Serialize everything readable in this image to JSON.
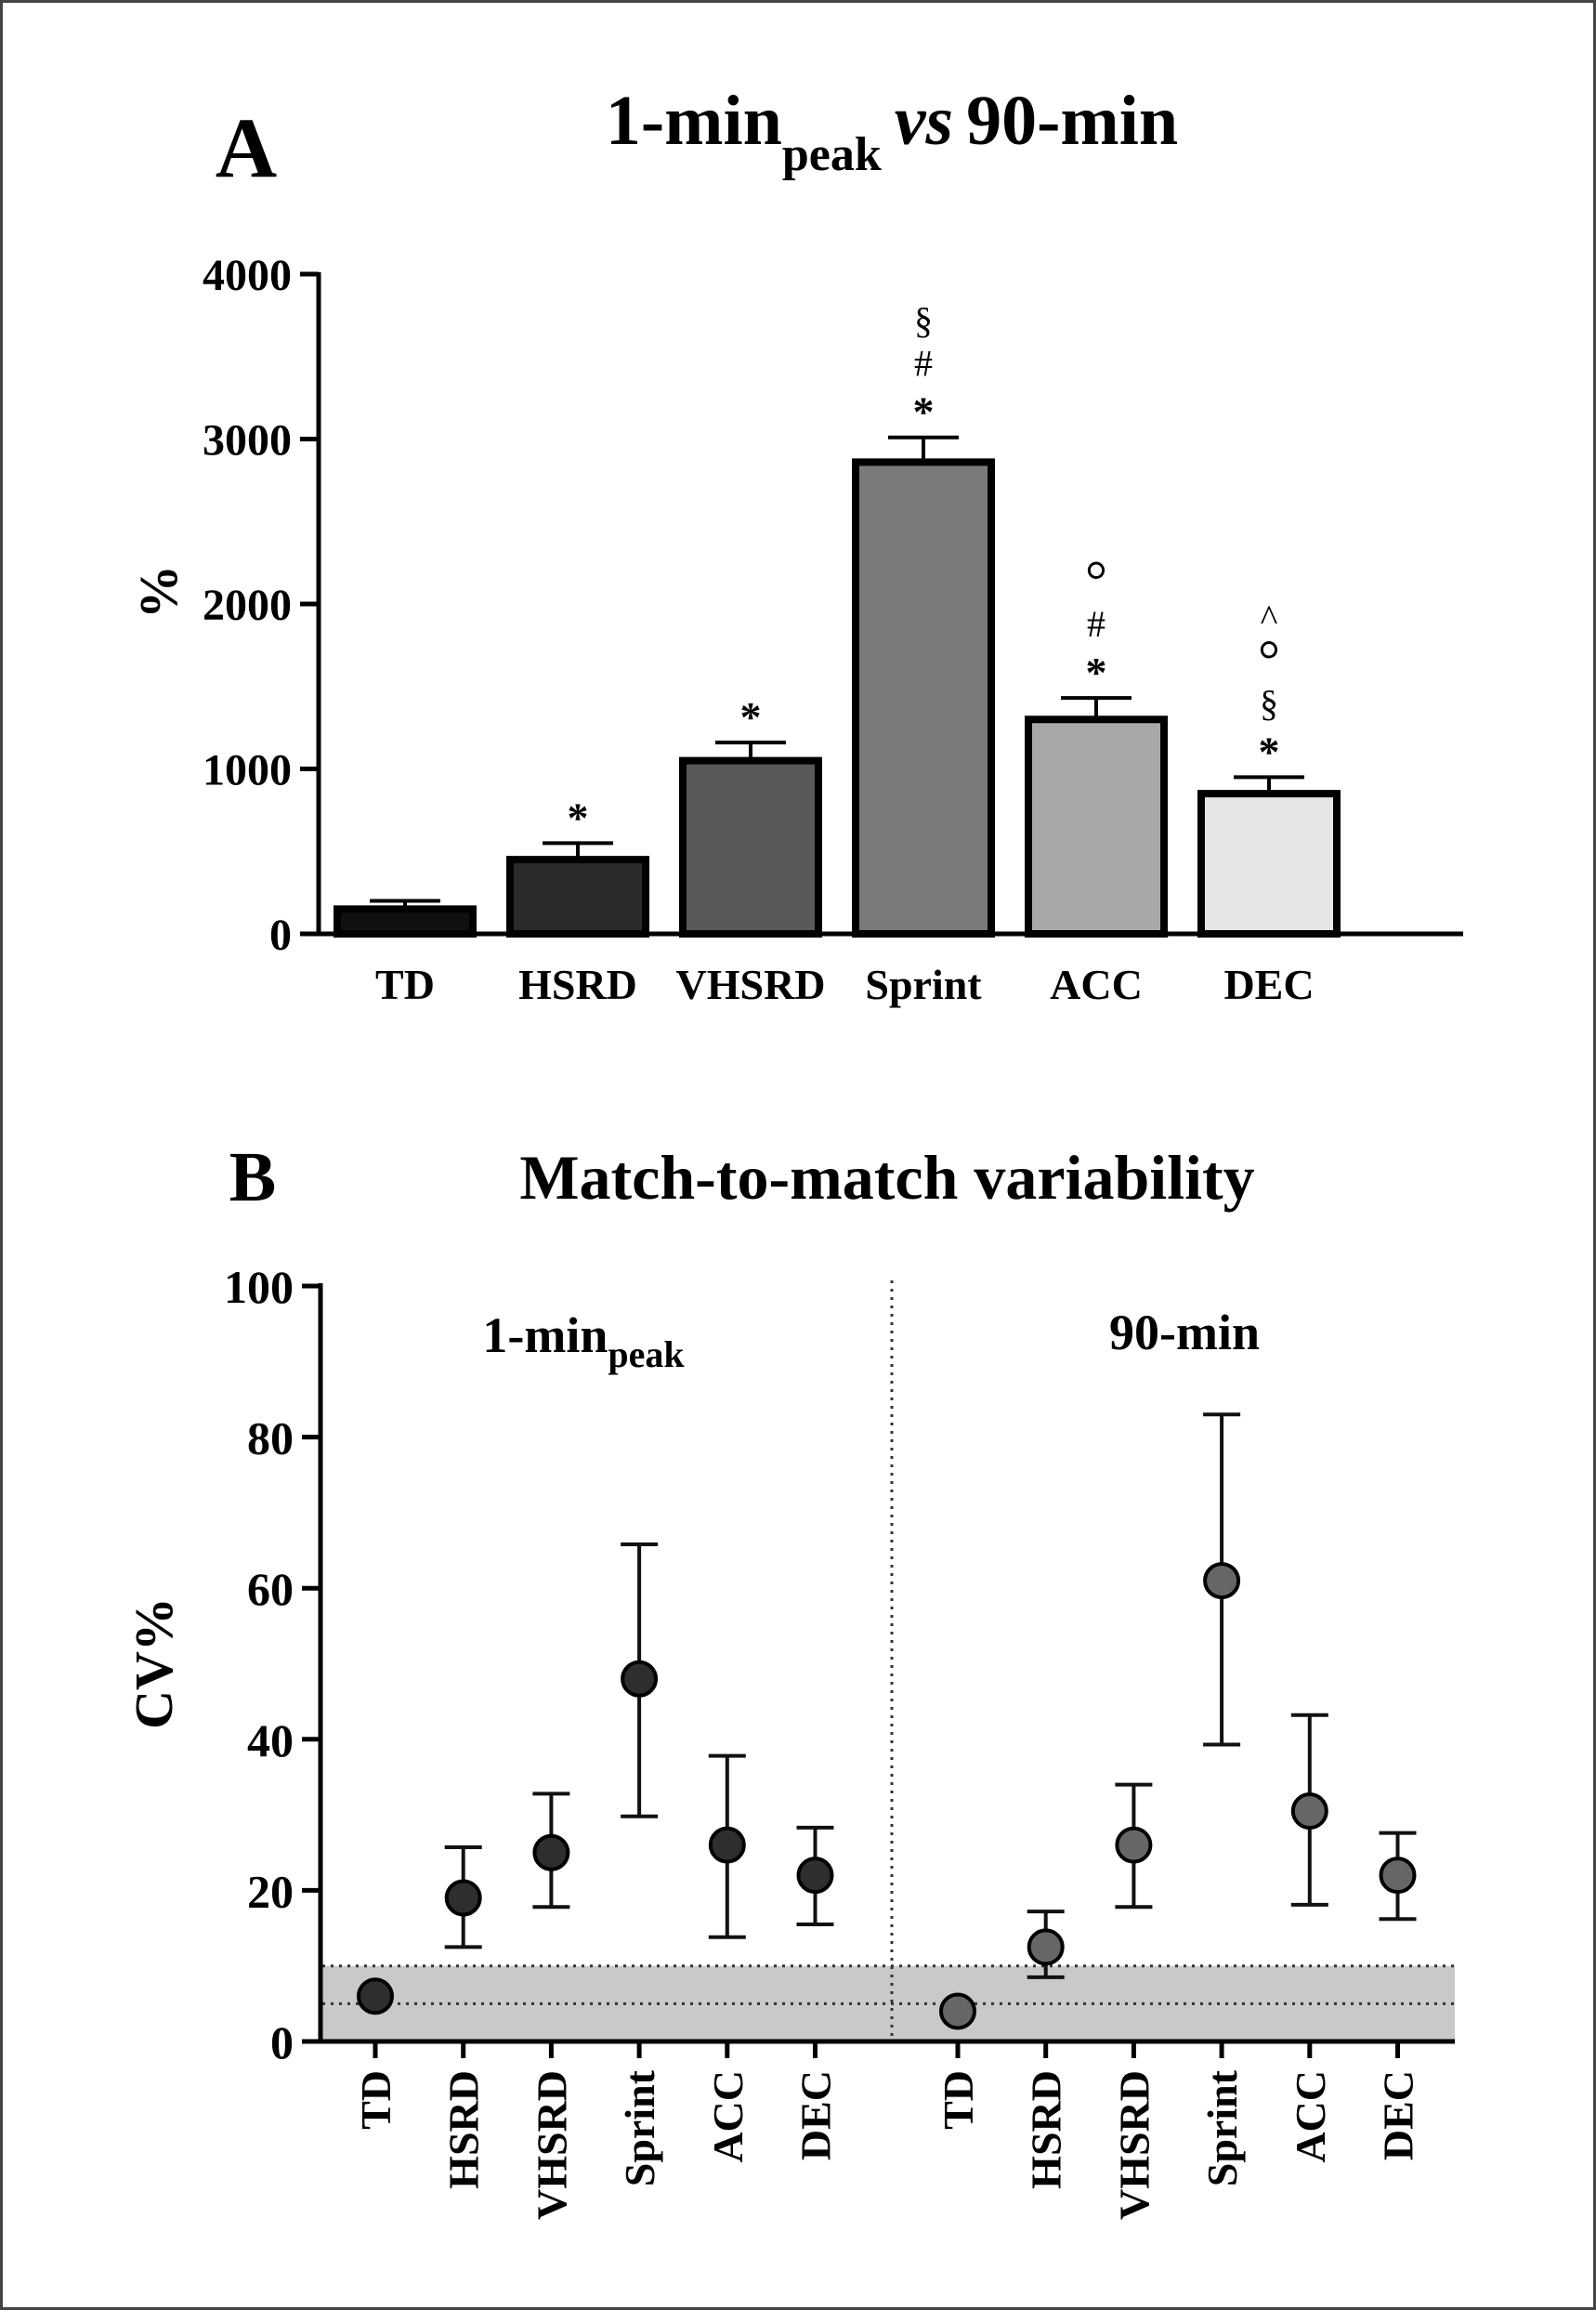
{
  "chart_data": [
    {
      "type": "bar",
      "panel_letter": "A",
      "title": {
        "part1": "1-min",
        "sub": "peak",
        "part2": "vs",
        "part3": "90-min"
      },
      "ylabel": "%",
      "ylim": [
        0,
        4000
      ],
      "yticks": [
        "0",
        "1000",
        "2000",
        "3000",
        "4000"
      ],
      "ytick_values": [
        0,
        1000,
        2000,
        3000,
        4000
      ],
      "categories": [
        "TD",
        "HSRD",
        "VHSRD",
        "Sprint",
        "ACC",
        "DEC"
      ],
      "values": [
        150,
        450,
        1050,
        2860,
        1300,
        850
      ],
      "errors": [
        50,
        100,
        110,
        150,
        130,
        100
      ],
      "bar_colors": [
        "#111111",
        "#2b2b2b",
        "#595959",
        "#7a7a7a",
        "#a8a8a8",
        "#e6e6e6"
      ],
      "annotations": [
        [],
        [
          "*"
        ],
        [
          "*"
        ],
        [
          "*",
          "#",
          "§"
        ],
        [
          "*",
          "#",
          "°"
        ],
        [
          "*",
          "§",
          "°",
          "^"
        ]
      ]
    },
    {
      "type": "scatter",
      "panel_letter": "B",
      "title": "Match-to-match variability",
      "ylabel": "CV%",
      "ylim": [
        0,
        100
      ],
      "yticks": [
        "0",
        "20",
        "40",
        "60",
        "80",
        "100"
      ],
      "ytick_values": [
        0,
        20,
        40,
        60,
        80,
        100
      ],
      "reference_band": [
        0,
        10
      ],
      "reference_lines": [
        5,
        10
      ],
      "groups": [
        {
          "label": "1-min",
          "label_sub": "peak",
          "color": "#2e2e2e",
          "categories": [
            "TD",
            "HSRD",
            "VHSRD",
            "Sprint",
            "ACC",
            "DEC"
          ],
          "values": [
            6,
            19,
            25,
            48,
            26,
            22
          ],
          "lower": [
            6,
            12.5,
            17.8,
            29.8,
            13.8,
            15.5
          ],
          "upper": [
            6,
            25.7,
            32.8,
            65.8,
            37.8,
            28.3
          ]
        },
        {
          "label": "90-min",
          "label_sub": "",
          "color": "#666666",
          "categories": [
            "TD",
            "HSRD",
            "VHSRD",
            "Sprint",
            "ACC",
            "DEC"
          ],
          "values": [
            4,
            12.5,
            26,
            61,
            30.5,
            22
          ],
          "lower": [
            4,
            8.5,
            17.8,
            39.3,
            18.1,
            16.2
          ],
          "upper": [
            4,
            17.2,
            34,
            83,
            43.2,
            27.6
          ]
        }
      ]
    }
  ]
}
